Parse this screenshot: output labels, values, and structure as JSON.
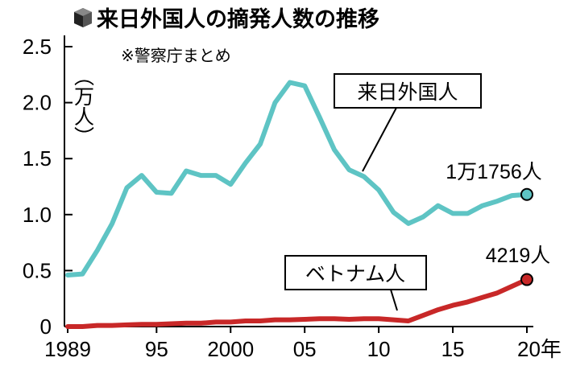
{
  "header": {
    "title": "来日外国人の摘発人数の推移",
    "note": "※警察庁まとめ"
  },
  "chart_data": {
    "type": "line",
    "unit_label": "（万人）",
    "x_tick_labels": [
      "1989",
      "95",
      "2000",
      "05",
      "10",
      "15",
      "20年"
    ],
    "x_tick_years": [
      1989,
      1995,
      2000,
      2005,
      2010,
      2015,
      2020
    ],
    "y_tick_labels": [
      "0",
      "0.5",
      "1.0",
      "1.5",
      "2.0",
      "2.5"
    ],
    "ylim": [
      0,
      2.5
    ],
    "xlim": [
      1989,
      2020
    ],
    "grid": false,
    "x": [
      1989,
      1990,
      1991,
      1992,
      1993,
      1994,
      1995,
      1996,
      1997,
      1998,
      1999,
      2000,
      2001,
      2002,
      2003,
      2004,
      2005,
      2006,
      2007,
      2008,
      2009,
      2010,
      2011,
      2012,
      2013,
      2014,
      2015,
      2016,
      2017,
      2018,
      2019,
      2020
    ],
    "series": [
      {
        "name": "来日外国人",
        "color": "#5ec4c4",
        "values": [
          0.46,
          0.47,
          0.68,
          0.92,
          1.24,
          1.35,
          1.2,
          1.19,
          1.39,
          1.35,
          1.35,
          1.27,
          1.46,
          1.63,
          2.0,
          2.18,
          2.15,
          1.87,
          1.58,
          1.4,
          1.34,
          1.22,
          1.02,
          0.92,
          0.98,
          1.08,
          1.01,
          1.01,
          1.08,
          1.12,
          1.17,
          1.18
        ],
        "end_label": "1万1756人"
      },
      {
        "name": "ベトナム人",
        "color": "#c82828",
        "values": [
          0.0,
          0.0,
          0.01,
          0.01,
          0.015,
          0.02,
          0.02,
          0.025,
          0.03,
          0.03,
          0.04,
          0.04,
          0.05,
          0.05,
          0.06,
          0.06,
          0.065,
          0.07,
          0.07,
          0.065,
          0.07,
          0.07,
          0.06,
          0.05,
          0.1,
          0.15,
          0.19,
          0.22,
          0.26,
          0.3,
          0.36,
          0.42
        ],
        "end_label": "4219人"
      }
    ]
  }
}
